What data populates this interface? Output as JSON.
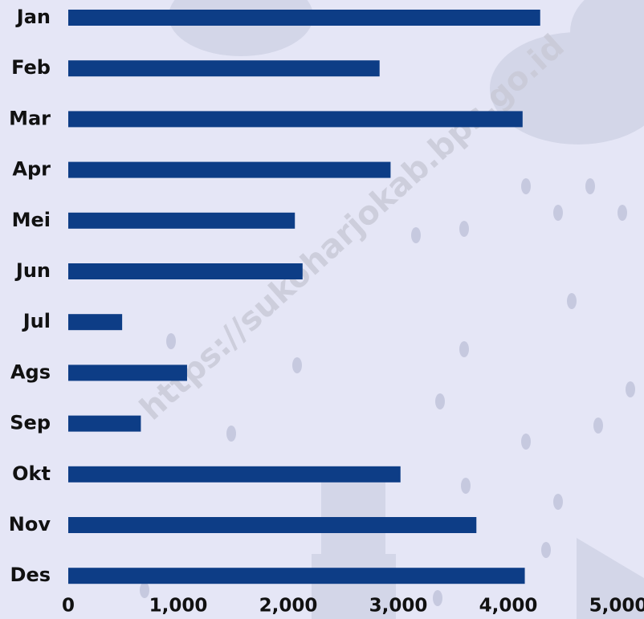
{
  "chart_data": {
    "type": "bar",
    "orientation": "horizontal",
    "watermark": "https://sukoharjokab.bps.go.id",
    "categories": [
      "Jan",
      "Feb",
      "Mar",
      "Apr",
      "Mei",
      "Jun",
      "Jul",
      "Ags",
      "Sep",
      "Okt",
      "Nov",
      "Des"
    ],
    "values": [
      4290,
      2830,
      4130,
      2930,
      2060,
      2130,
      490,
      1080,
      660,
      3020,
      3710,
      4150
    ],
    "color": "#0d3d86",
    "xlim": [
      0,
      5000
    ],
    "xticks": [
      0,
      {
        "value": 1000,
        "label": "1,000"
      },
      {
        "value": 2000,
        "label": "2,000"
      },
      {
        "value": 3000,
        "label": "3,000"
      },
      {
        "value": 4000,
        "label": "4,000"
      },
      {
        "value": 5000,
        "label": "5,000"
      }
    ],
    "grid": false
  }
}
